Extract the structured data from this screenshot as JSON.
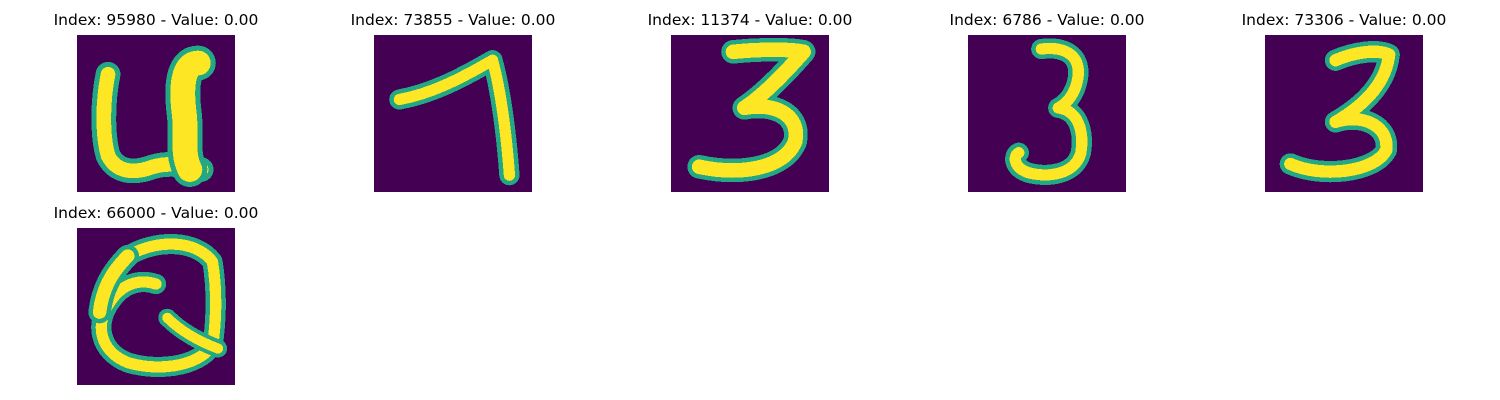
{
  "colors": {
    "background": "#440154",
    "mid": "#22a884",
    "stroke": "#fde725"
  },
  "panels": [
    {
      "title": "Index: 95980 - Value: 0.00",
      "glyph": "handwritten-U-image"
    },
    {
      "title": "Index: 73855 - Value: 0.00",
      "glyph": "handwritten-7-image"
    },
    {
      "title": "Index: 11374 - Value: 0.00",
      "glyph": "handwritten-3-image"
    },
    {
      "title": "Index: 6786 - Value: 0.00",
      "glyph": "handwritten-3-image"
    },
    {
      "title": "Index: 73306 - Value: 0.00",
      "glyph": "handwritten-3-image"
    },
    {
      "title": "Index: 66000 - Value: 0.00",
      "glyph": "handwritten-Q-image"
    }
  ]
}
